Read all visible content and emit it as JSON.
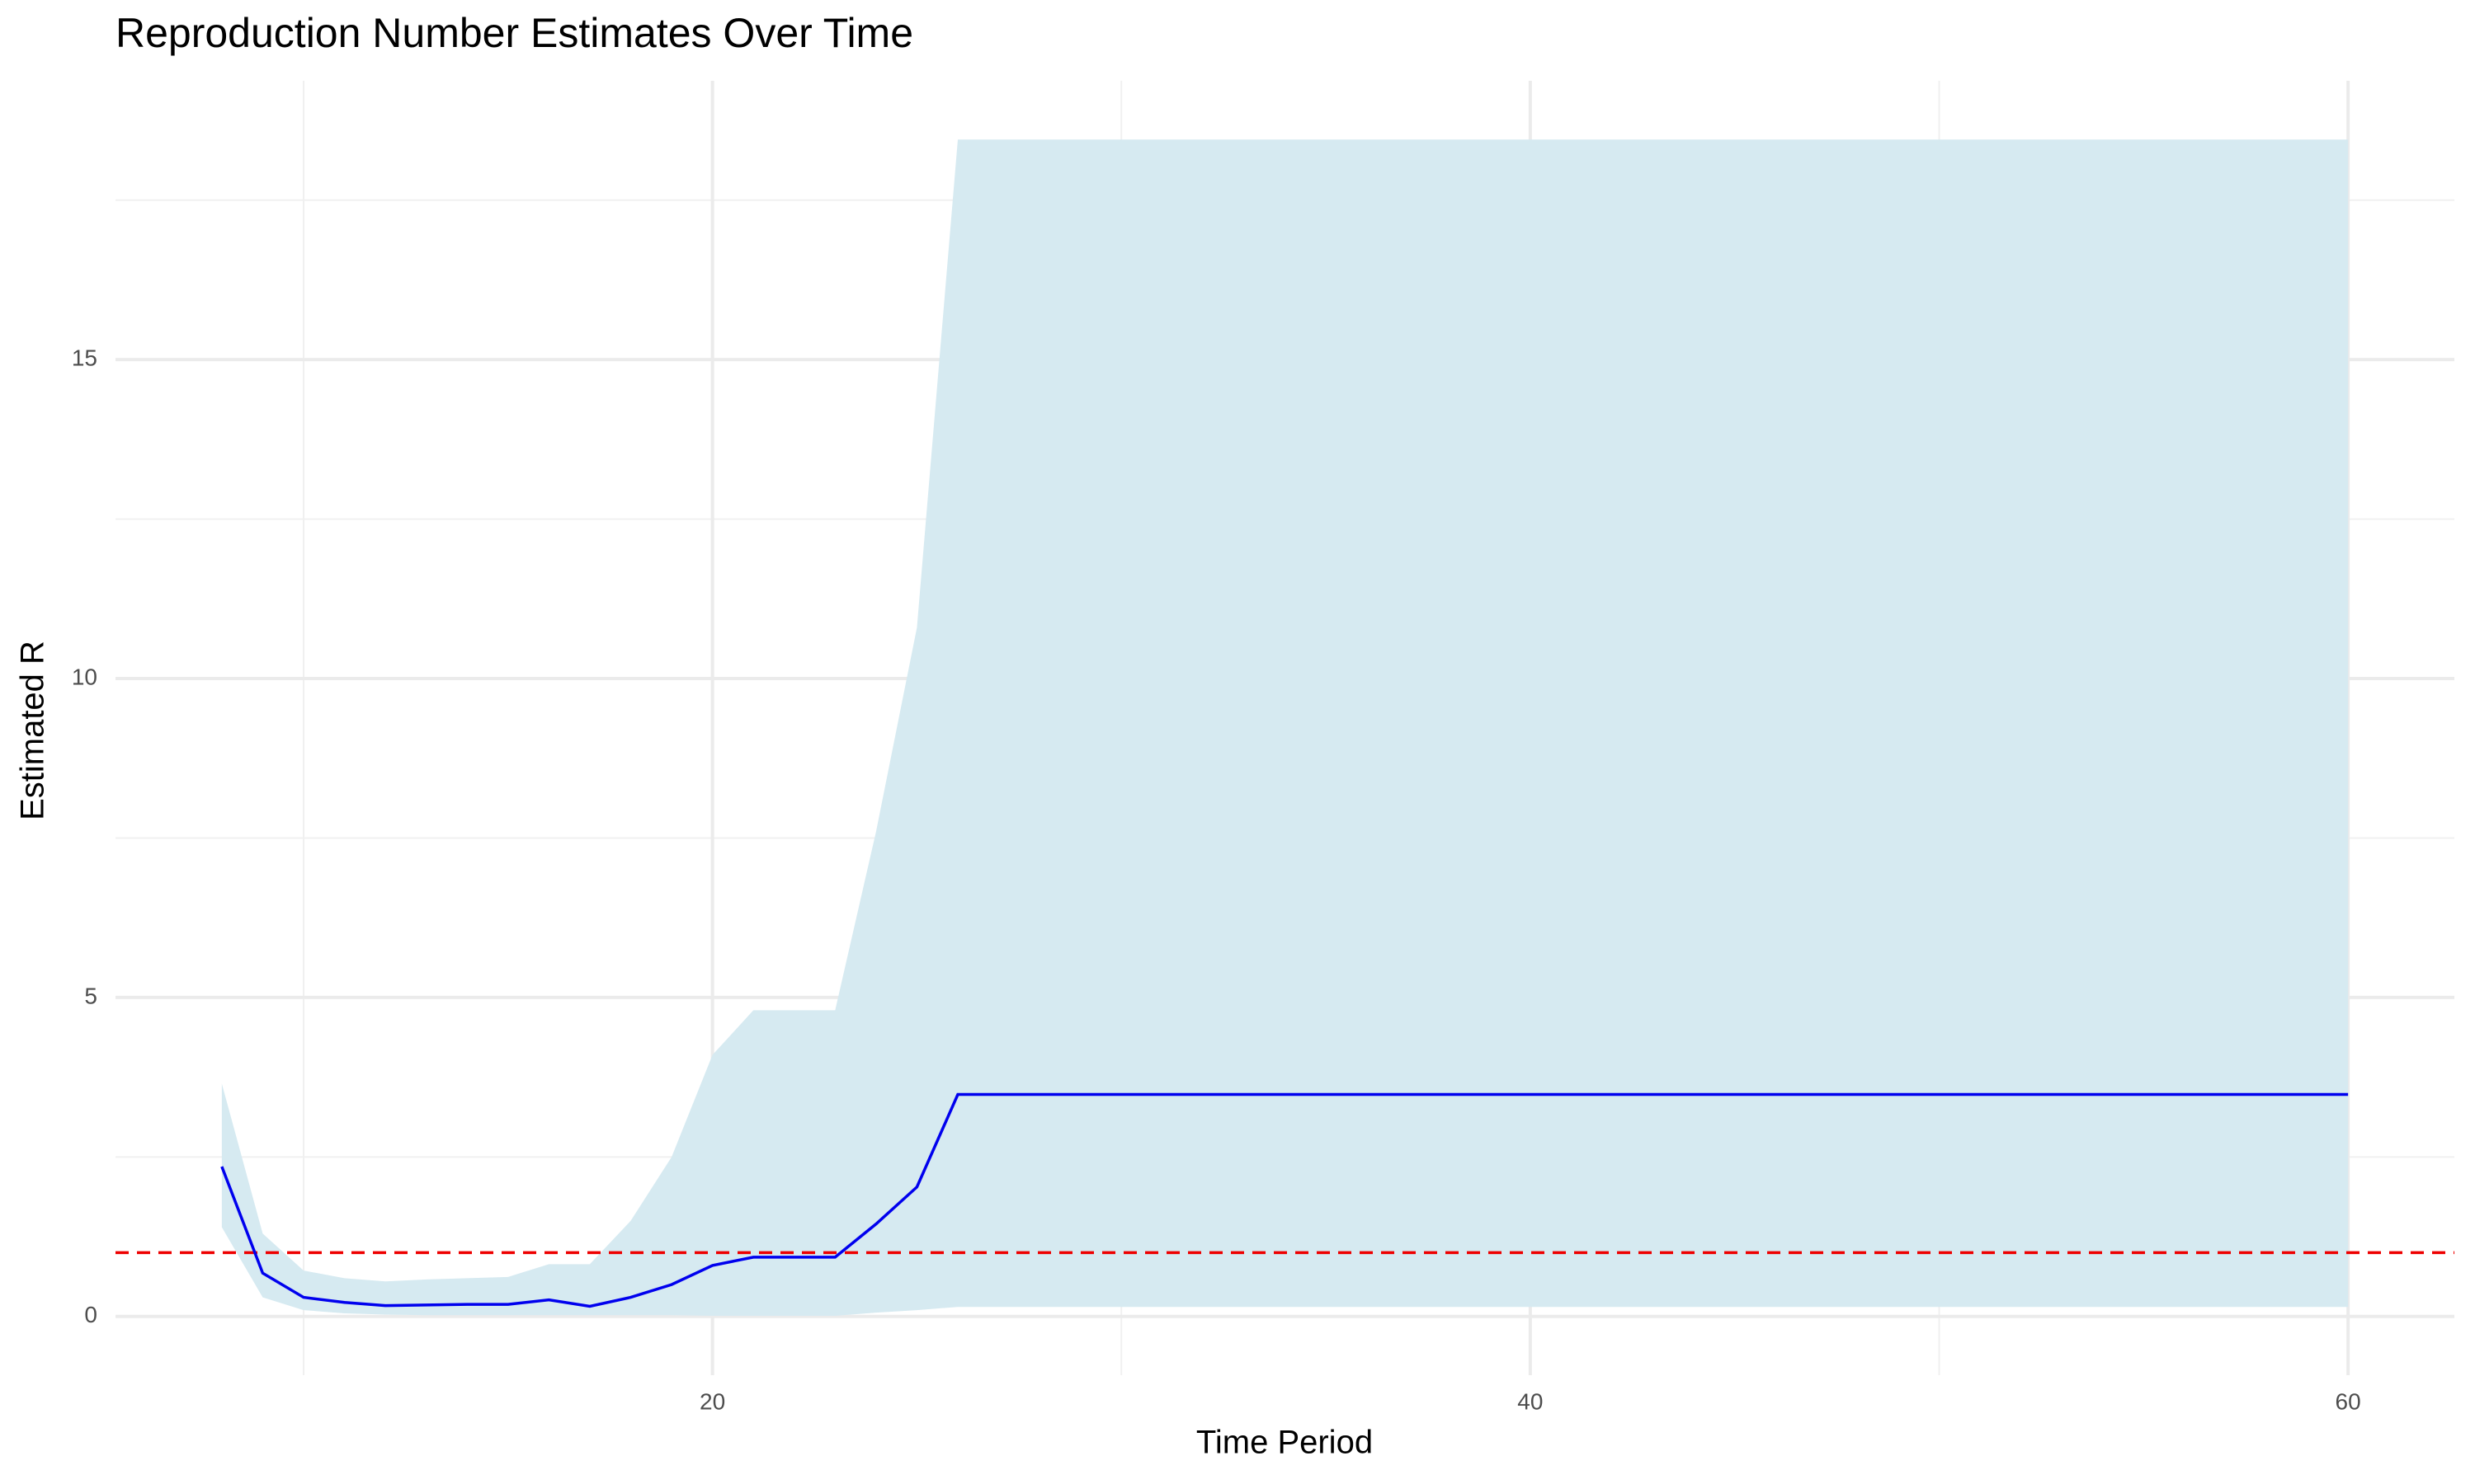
{
  "chart_data": {
    "type": "line",
    "title": "Reproduction Number Estimates Over Time",
    "x_label": "Time Period",
    "y_label": "Estimated R",
    "x": [
      8,
      9,
      10,
      11,
      12,
      13,
      14,
      15,
      16,
      17,
      18,
      19,
      20,
      21,
      22,
      23,
      24,
      25,
      26,
      27,
      28,
      29,
      30,
      31,
      32,
      33,
      34,
      35,
      36,
      37,
      38,
      39,
      40,
      41,
      42,
      43,
      44,
      45,
      46,
      47,
      48,
      49,
      50,
      51,
      52,
      53,
      54,
      55,
      56,
      57,
      58,
      59,
      60
    ],
    "values": [
      2.35,
      0.68,
      0.3,
      0.22,
      0.17,
      0.18,
      0.19,
      0.19,
      0.26,
      0.16,
      0.3,
      0.5,
      0.8,
      0.93,
      0.93,
      0.93,
      1.45,
      2.03,
      3.48,
      3.48,
      3.48,
      3.48,
      3.48,
      3.48,
      3.48,
      3.48,
      3.48,
      3.48,
      3.48,
      3.48,
      3.48,
      3.48,
      3.48,
      3.48,
      3.48,
      3.48,
      3.48,
      3.48,
      3.48,
      3.48,
      3.48,
      3.48,
      3.48,
      3.48,
      3.48,
      3.48,
      3.48,
      3.48,
      3.48,
      3.48,
      3.48,
      3.48,
      3.48
    ],
    "upper": [
      3.65,
      1.3,
      0.72,
      0.6,
      0.55,
      0.58,
      0.6,
      0.62,
      0.82,
      0.82,
      1.5,
      2.5,
      4.1,
      4.8,
      4.8,
      4.8,
      7.6,
      10.8,
      18.45,
      18.45,
      18.45,
      18.45,
      18.45,
      18.45,
      18.45,
      18.45,
      18.45,
      18.45,
      18.45,
      18.45,
      18.45,
      18.45,
      18.45,
      18.45,
      18.45,
      18.45,
      18.45,
      18.45,
      18.45,
      18.45,
      18.45,
      18.45,
      18.45,
      18.45,
      18.45,
      18.45,
      18.45,
      18.45,
      18.45,
      18.45,
      18.45,
      18.45,
      18.45
    ],
    "lower": [
      1.4,
      0.3,
      0.1,
      0.05,
      0.03,
      0.02,
      0.02,
      0.02,
      0.02,
      0.02,
      0.02,
      0.02,
      0.01,
      0.01,
      0.01,
      0.01,
      0.06,
      0.1,
      0.15,
      0.15,
      0.15,
      0.15,
      0.15,
      0.15,
      0.15,
      0.15,
      0.15,
      0.15,
      0.15,
      0.15,
      0.15,
      0.15,
      0.15,
      0.15,
      0.15,
      0.15,
      0.15,
      0.15,
      0.15,
      0.15,
      0.15,
      0.15,
      0.15,
      0.15,
      0.15,
      0.15,
      0.15,
      0.15,
      0.15,
      0.15,
      0.15,
      0.15,
      0.15
    ],
    "color": "#0000ee",
    "band_color": "#d6eaf1",
    "reference_line": {
      "value": 1,
      "color": "#ee0000"
    },
    "xlim": [
      5.4,
      62.6
    ],
    "xticks": [
      20,
      40,
      60
    ],
    "xminor": [
      10,
      30,
      50
    ],
    "ylim": [
      -0.92,
      19.37
    ],
    "yticks": [
      0,
      5,
      10,
      15
    ],
    "yminor": [
      2.5,
      7.5,
      12.5,
      17.5
    ],
    "grid": true
  }
}
